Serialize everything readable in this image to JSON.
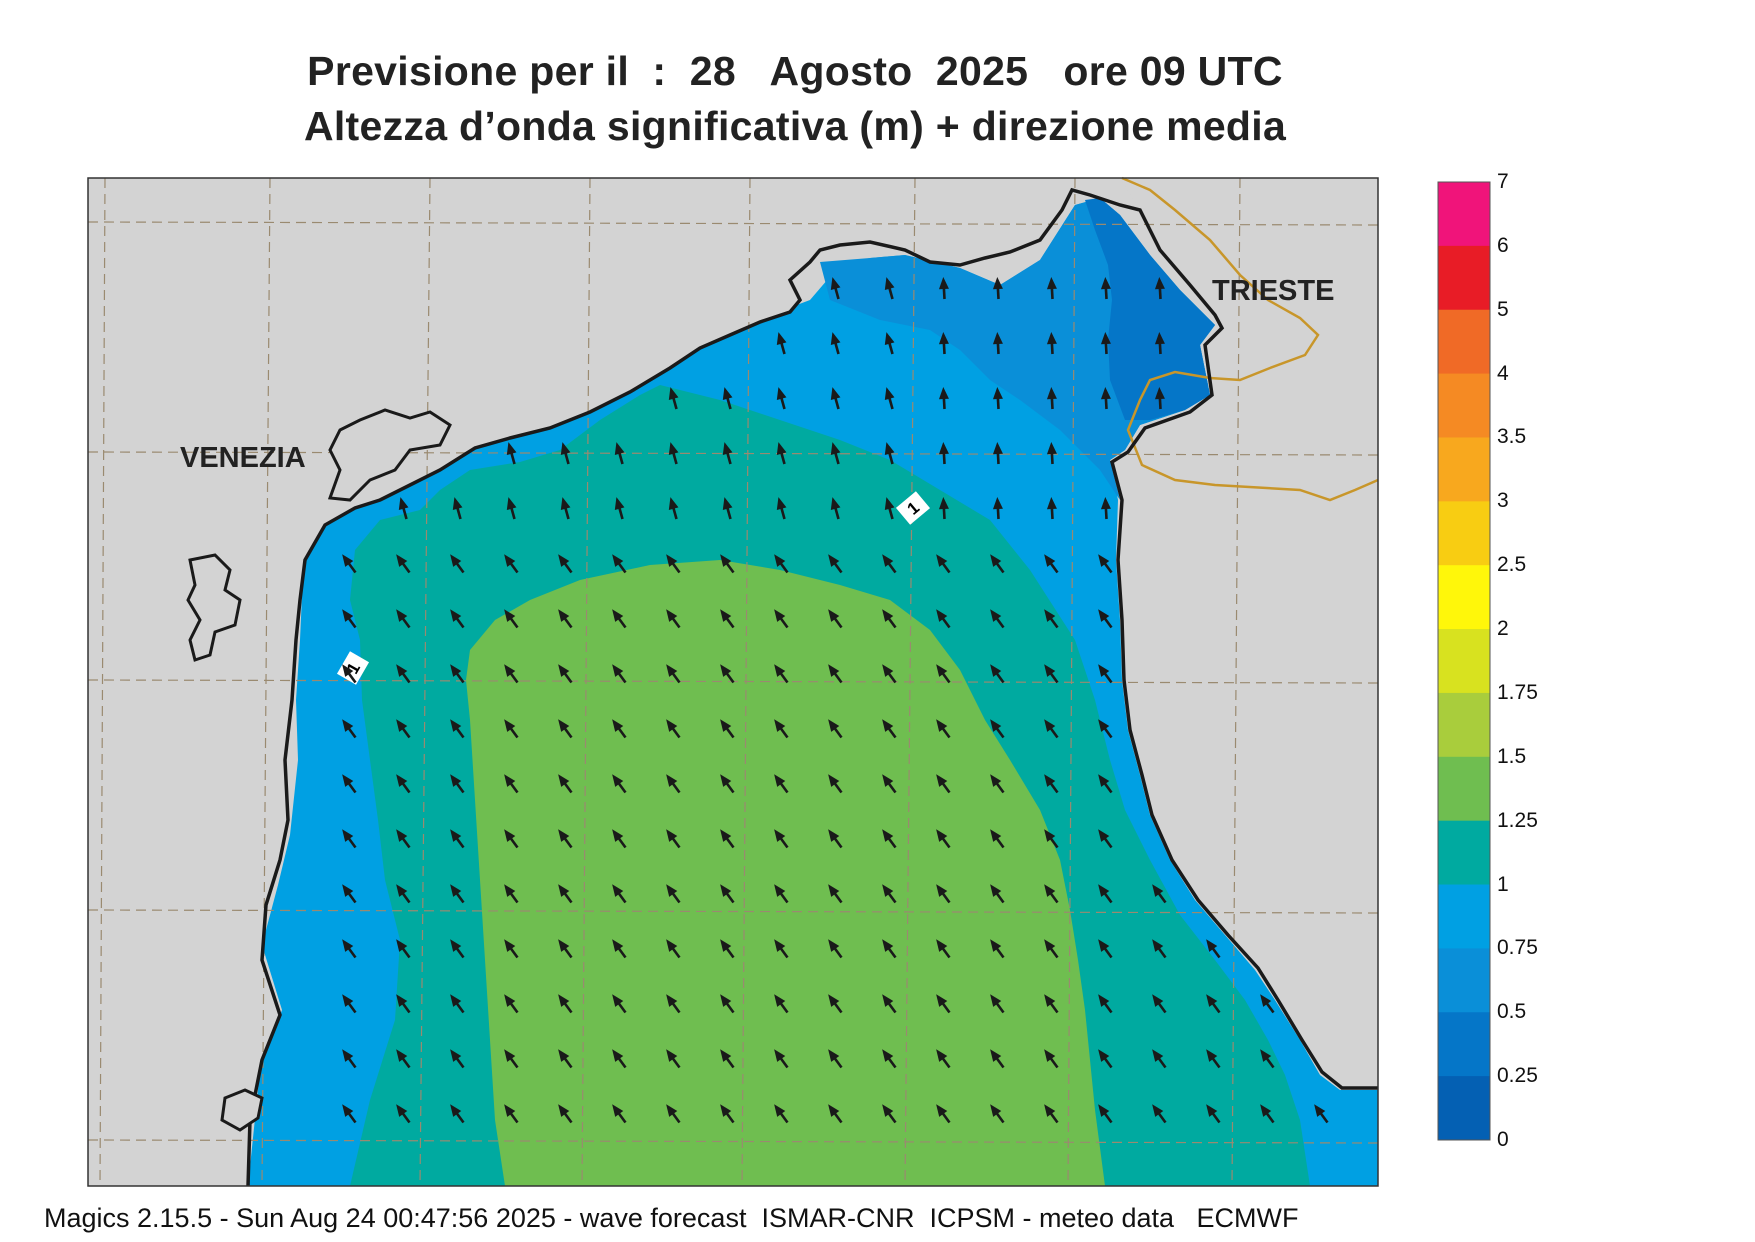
{
  "title": {
    "line1": "Previsione per il  :  28   Agosto  2025   ore 09 UTC",
    "line2": "Altezza d’onda significativa (m) + direzione media"
  },
  "footer": "Magics 2.15.5 - Sun Aug 24 00:47:56 2025 - wave forecast  ISMAR-CNR  ICPSM - meteo data   ECMWF",
  "map": {
    "cities": [
      {
        "name": "VENEZIA"
      },
      {
        "name": "TRIESTE"
      }
    ],
    "contour_labels": [
      "1",
      "1"
    ],
    "colors": {
      "land": "#d3d3d3",
      "border": "#c8962a",
      "coast": "#1a1a1a",
      "arrows": "#1a1a1a"
    },
    "wave_direction": "arrows pointing toward north-west"
  },
  "colorbar": {
    "levels": [
      "7",
      "6",
      "5",
      "4",
      "3.5",
      "3",
      "2.5",
      "2",
      "1.75",
      "1.5",
      "1.25",
      "1",
      "0.75",
      "0.5",
      "0.25",
      "0"
    ],
    "colors": [
      "#f0147a",
      "#e81c26",
      "#f06a26",
      "#f58a23",
      "#f8a81e",
      "#f8cd12",
      "#fff70a",
      "#d8e21f",
      "#a9cd3c",
      "#6fbe50",
      "#00aaa0",
      "#00a0e3",
      "#0a8fd8",
      "#0576c8",
      "#0460b3"
    ]
  }
}
